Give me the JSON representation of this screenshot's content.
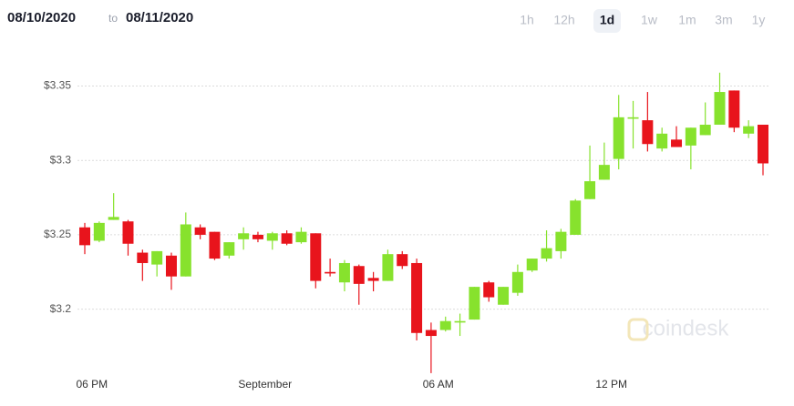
{
  "header": {
    "from": "08/10/2020",
    "to_word": "to",
    "to": "08/11/2020"
  },
  "ranges": [
    "1h",
    "12h",
    "1d",
    "1w",
    "1m",
    "3m",
    "1y"
  ],
  "selected_range": 2,
  "watermark": "coindesk",
  "chart_data": {
    "type": "candlestick",
    "categories": [
      null,
      "06 PM",
      null,
      null,
      null,
      null,
      null,
      null,
      null,
      null,
      null,
      null,
      null,
      "September",
      null,
      null,
      null,
      null,
      null,
      null,
      null,
      null,
      null,
      null,
      null,
      "06 AM",
      null,
      null,
      null,
      null,
      null,
      null,
      null,
      null,
      null,
      null,
      null,
      "12 PM",
      null,
      null,
      null,
      null,
      null,
      null,
      null,
      null,
      null,
      null
    ],
    "open": [
      3.255,
      3.246,
      3.26,
      3.259,
      3.238,
      3.23,
      3.236,
      3.222,
      3.255,
      3.252,
      3.236,
      3.247,
      3.25,
      3.246,
      3.251,
      3.245,
      3.251,
      3.225,
      3.218,
      3.229,
      3.221,
      3.219,
      3.237,
      3.231,
      3.186,
      3.186,
      3.191,
      3.193,
      3.218,
      3.203,
      3.211,
      3.226,
      3.234,
      3.239,
      3.25,
      3.274,
      3.287,
      3.301,
      3.328,
      3.327,
      3.308,
      3.314,
      3.31,
      3.317,
      3.324,
      3.347,
      3.318,
      3.324
    ],
    "high": [
      3.258,
      3.259,
      3.278,
      3.26,
      3.24,
      3.239,
      3.238,
      3.265,
      3.257,
      3.252,
      3.245,
      3.255,
      3.252,
      3.252,
      3.253,
      3.255,
      3.251,
      3.234,
      3.233,
      3.23,
      3.225,
      3.24,
      3.239,
      3.234,
      3.191,
      3.195,
      3.197,
      3.215,
      3.219,
      3.215,
      3.23,
      3.234,
      3.253,
      3.254,
      3.274,
      3.31,
      3.312,
      3.344,
      3.34,
      3.346,
      3.322,
      3.323,
      3.322,
      3.339,
      3.359,
      3.347,
      3.327,
      3.324
    ],
    "low": [
      3.237,
      3.245,
      3.26,
      3.236,
      3.219,
      3.222,
      3.213,
      3.222,
      3.247,
      3.233,
      3.234,
      3.24,
      3.245,
      3.24,
      3.243,
      3.244,
      3.214,
      3.222,
      3.212,
      3.203,
      3.212,
      3.219,
      3.227,
      3.179,
      3.157,
      3.185,
      3.182,
      3.193,
      3.205,
      3.203,
      3.209,
      3.225,
      3.232,
      3.234,
      3.25,
      3.274,
      3.287,
      3.294,
      3.308,
      3.306,
      3.306,
      3.309,
      3.294,
      3.317,
      3.324,
      3.319,
      3.315,
      3.29
    ],
    "close": [
      3.243,
      3.258,
      3.262,
      3.244,
      3.231,
      3.239,
      3.222,
      3.257,
      3.25,
      3.234,
      3.245,
      3.251,
      3.247,
      3.251,
      3.244,
      3.252,
      3.219,
      3.224,
      3.231,
      3.217,
      3.219,
      3.237,
      3.229,
      3.184,
      3.182,
      3.192,
      3.192,
      3.215,
      3.208,
      3.215,
      3.225,
      3.234,
      3.241,
      3.252,
      3.273,
      3.286,
      3.297,
      3.329,
      3.329,
      3.311,
      3.318,
      3.309,
      3.322,
      3.324,
      3.346,
      3.322,
      3.323,
      3.298
    ],
    "up_color": "#87e22d",
    "down_color": "#e8141c",
    "ylim": [
      3.16,
      3.365
    ],
    "yticks": [
      {
        "value": 3.2,
        "label": "$3.2"
      },
      {
        "value": 3.25,
        "label": "$3.25"
      },
      {
        "value": 3.3,
        "label": "$3.3"
      },
      {
        "value": 3.35,
        "label": "$3.35"
      }
    ],
    "grid": true
  }
}
